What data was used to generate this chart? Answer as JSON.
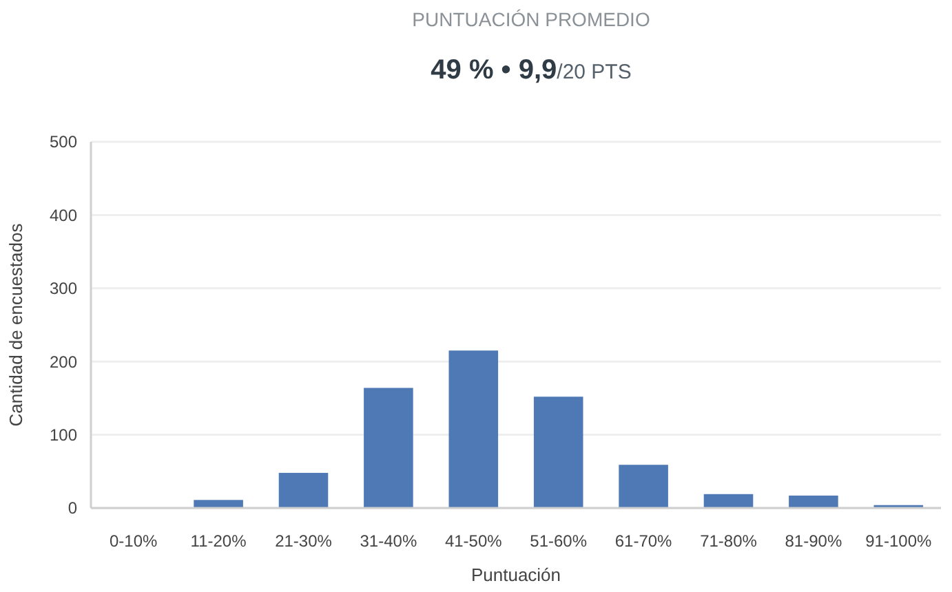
{
  "chart_data": {
    "type": "bar",
    "title": "PUNTUACIÓN PROMEDIO",
    "subtitle": "49 % • 9,9/20 PTS",
    "xlabel": "Puntuación",
    "ylabel": "Cantidad de encuestados",
    "categories": [
      "0-10%",
      "11-20%",
      "21-30%",
      "31-40%",
      "41-50%",
      "51-60%",
      "61-70%",
      "71-80%",
      "81-90%",
      "91-100%"
    ],
    "values": [
      0,
      11,
      48,
      164,
      215,
      152,
      59,
      19,
      17,
      4
    ],
    "color": "#4e79b5",
    "ylim": [
      0,
      500
    ],
    "yticks": [
      0,
      100,
      200,
      300,
      400,
      500
    ],
    "grid": "y"
  }
}
